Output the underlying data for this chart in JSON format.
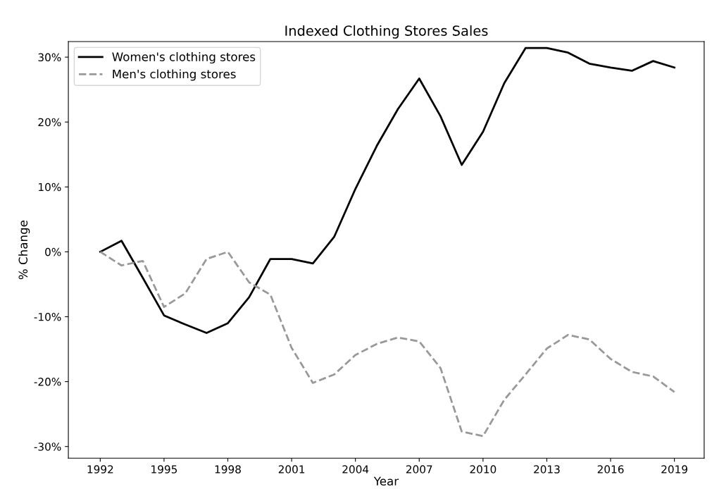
{
  "chart_data": {
    "type": "line",
    "title": "Indexed Clothing Stores Sales",
    "xlabel": "Year",
    "ylabel": "% Change",
    "x": [
      1992,
      1993,
      1994,
      1995,
      1996,
      1997,
      1998,
      1999,
      2000,
      2001,
      2002,
      2003,
      2004,
      2005,
      2006,
      2007,
      2008,
      2009,
      2010,
      2011,
      2012,
      2013,
      2014,
      2015,
      2016,
      2017,
      2018,
      2019
    ],
    "series": [
      {
        "name": "Women's clothing stores",
        "color": "#000000",
        "line_style": "solid",
        "values": [
          0,
          1.7,
          -4,
          -9.8,
          -11.2,
          -12.5,
          -11,
          -7,
          -1.1,
          -1.1,
          -1.8,
          2.3,
          9.7,
          16.3,
          22,
          26.7,
          20.9,
          13.4,
          18.5,
          26,
          31.4,
          31.4,
          30.7,
          29,
          28.4,
          27.9,
          29.4,
          28.4
        ]
      },
      {
        "name": "Men's clothing stores",
        "color": "#999999",
        "line_style": "dashed",
        "values": [
          0,
          -2.1,
          -1.4,
          -8.5,
          -6.4,
          -1.1,
          0,
          -4.7,
          -6.6,
          -14.8,
          -20.2,
          -18.9,
          -15.9,
          -14.2,
          -13.2,
          -13.8,
          -17.9,
          -27.7,
          -28.4,
          -22.8,
          -18.9,
          -14.9,
          -12.8,
          -13.5,
          -16.5,
          -18.5,
          -19.2,
          -21.6
        ]
      }
    ],
    "xlim": [
      1990.5,
      2020.4
    ],
    "xticks": [
      1992,
      1995,
      1998,
      2001,
      2004,
      2007,
      2010,
      2013,
      2016,
      2019
    ],
    "ylim": [
      -31.8,
      32.4
    ],
    "yticks": [
      {
        "value": -30,
        "label": "-30%"
      },
      {
        "value": -20,
        "label": "-20%"
      },
      {
        "value": -10,
        "label": "-10%"
      },
      {
        "value": 0,
        "label": "0%"
      },
      {
        "value": 10,
        "label": "10%"
      },
      {
        "value": 20,
        "label": "20%"
      },
      {
        "value": 30,
        "label": "30%"
      }
    ],
    "legend": "top left",
    "grid": false,
    "marker": "none"
  }
}
